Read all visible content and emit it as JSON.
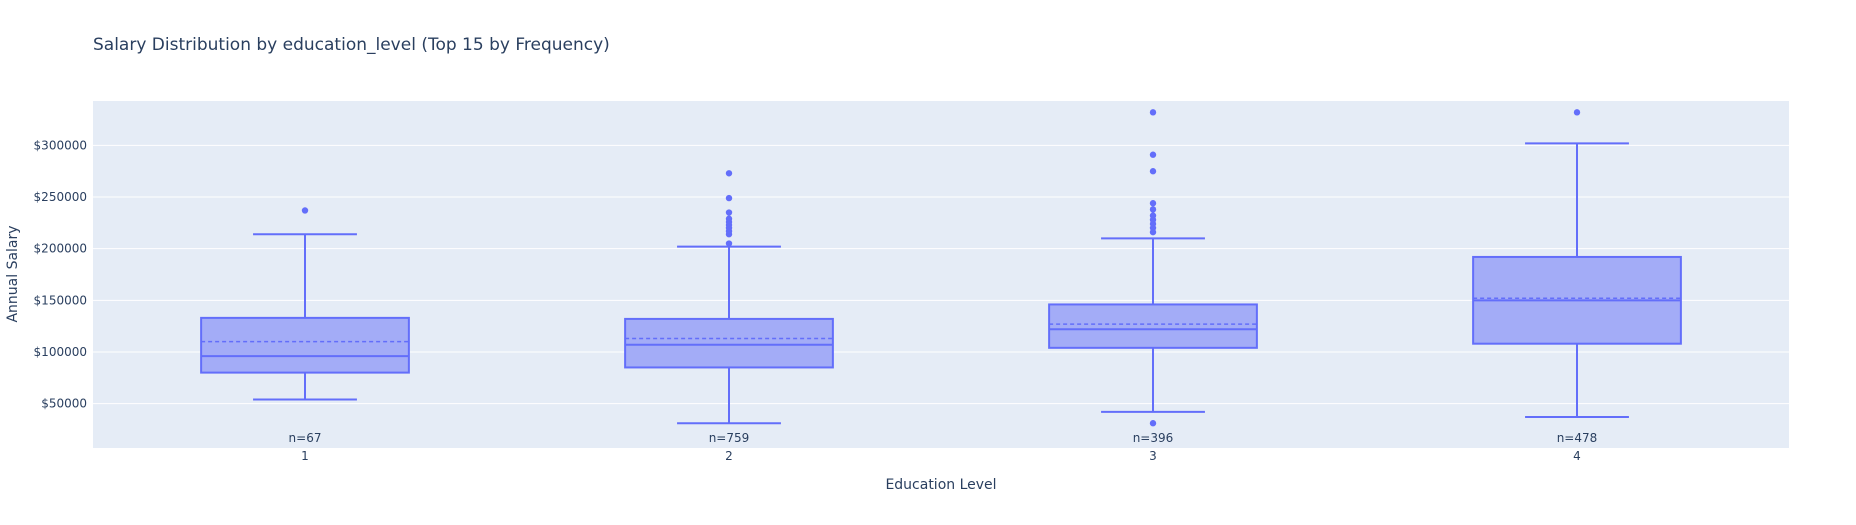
{
  "chart_data": {
    "type": "box",
    "title": "Salary Distribution by education_level (Top 15 by Frequency)",
    "xlabel": "Education Level",
    "ylabel": "Annual Salary",
    "ylim": [
      7000,
      343000
    ],
    "yticks": [
      50000,
      100000,
      150000,
      200000,
      250000,
      300000
    ],
    "ytick_labels": [
      "$50000",
      "$100000",
      "$150000",
      "$200000",
      "$250000",
      "$300000"
    ],
    "grid": true,
    "colors": {
      "box_fill": "#a3acf7",
      "box_line": "#636efa",
      "plot_bg": "#e5ecf6",
      "grid": "#ffffff",
      "text": "#2a3f5f"
    },
    "categories": [
      "1",
      "2",
      "3",
      "4"
    ],
    "boxes": [
      {
        "category": "1",
        "count_label": "n=67",
        "lower_whisker": 54000,
        "q1": 80000,
        "median": 96000,
        "mean": 110000,
        "q3": 133000,
        "upper_whisker": 214000,
        "outliers": [
          237000
        ]
      },
      {
        "category": "2",
        "count_label": "n=759",
        "lower_whisker": 31000,
        "q1": 85000,
        "median": 107000,
        "mean": 113000,
        "q3": 132000,
        "upper_whisker": 202000,
        "outliers": [
          205000,
          214000,
          217000,
          220000,
          223000,
          226000,
          229000,
          235000,
          249000,
          273000
        ]
      },
      {
        "category": "3",
        "count_label": "n=396",
        "lower_whisker": 42000,
        "q1": 104000,
        "median": 122000,
        "mean": 127000,
        "q3": 146000,
        "upper_whisker": 210000,
        "outliers": [
          31000,
          216000,
          220000,
          224000,
          228000,
          232000,
          238000,
          244000,
          275000,
          291000,
          332000
        ]
      },
      {
        "category": "4",
        "count_label": "n=478",
        "lower_whisker": 37000,
        "q1": 108000,
        "median": 150000,
        "mean": 152000,
        "q3": 192000,
        "upper_whisker": 302000,
        "outliers": [
          332000
        ]
      }
    ]
  }
}
